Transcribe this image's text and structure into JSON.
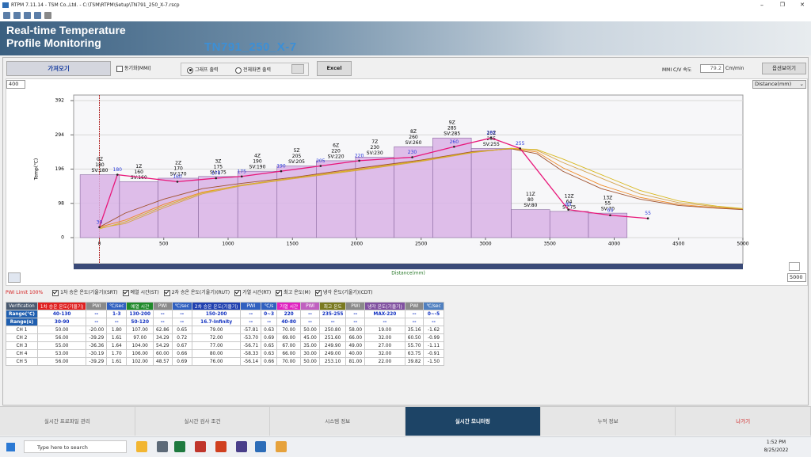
{
  "title_bar": {
    "title": "RTPM 7.11.14 - TSM Co.,Ltd. - C:\\TSM\\RTPM\\Setup\\TN791_250_X-7.rscp"
  },
  "header": {
    "title_line1": "Real-time Temperature",
    "title_line2": "Profile Monitoring",
    "model": "TN791_250_X-7"
  },
  "controls": {
    "import": "가져오기",
    "sync": "동기화[MMI]",
    "graph_output": "그래프 출력",
    "fullscreen_output": "전체화면 출력",
    "excel": "Excel",
    "speed_label": "MMI C/V 속도",
    "speed": "79.2",
    "speed_unit": "Cm/min",
    "options": "옵션보이기",
    "y_max_input": "400",
    "x_mode": "Distance(mm)",
    "x_max_input": "5000"
  },
  "chart_data": {
    "type": "line",
    "y_label": "Temp(℃)",
    "x_label": "Distance(mm)",
    "xlim": [
      -200,
      5000
    ],
    "xticks": [
      0,
      500,
      1000,
      1500,
      2000,
      2500,
      3000,
      3500,
      4000,
      4500,
      5000
    ],
    "ylim": [
      0,
      392
    ],
    "yticks": [
      0,
      98,
      196,
      294,
      392
    ],
    "grid": true,
    "zone_color": "#d9b3e6",
    "zones": [
      {
        "name": "0Z",
        "actual": 180,
        "setpoint": 180,
        "setpoint_label": "SV:180",
        "start": -150,
        "end": 156
      },
      {
        "name": "1Z",
        "actual": 160,
        "setpoint": 160,
        "setpoint_label": "SV:160",
        "start": 156,
        "end": 456
      },
      {
        "name": "2Z",
        "actual": 170,
        "setpoint": 170,
        "setpoint_label": "SV:170",
        "start": 456,
        "end": 770
      },
      {
        "name": "3Z",
        "actual": 175,
        "setpoint": 175,
        "setpoint_label": "SV:175",
        "start": 770,
        "end": 1075
      },
      {
        "name": "4Z",
        "actual": 190,
        "setpoint": 190,
        "setpoint_label": "SV:190",
        "start": 1075,
        "end": 1380
      },
      {
        "name": "5Z",
        "actual": 205,
        "setpoint": 205,
        "setpoint_label": "SV:205",
        "start": 1380,
        "end": 1685
      },
      {
        "name": "6Z",
        "actual": 220,
        "setpoint": 220,
        "setpoint_label": "SV:220",
        "start": 1685,
        "end": 1990
      },
      {
        "name": "7Z",
        "actual": 230,
        "setpoint": 230,
        "setpoint_label": "SV:230",
        "start": 1990,
        "end": 2290
      },
      {
        "name": "8Z",
        "actual": 260,
        "setpoint": 260,
        "setpoint_label": "SV:260",
        "start": 2290,
        "end": 2590
      },
      {
        "name": "9Z",
        "actual": 285,
        "setpoint": 285,
        "setpoint_label": "SV:285",
        "start": 2590,
        "end": 2890
      },
      {
        "name": "10Z",
        "actual": 255,
        "setpoint": 255,
        "setpoint_label": "SV:255",
        "start": 2890,
        "end": 3200
      },
      {
        "name": "11Z",
        "actual": 80,
        "setpoint": 80,
        "setpoint_label": "SV:80",
        "start": 3200,
        "end": 3500
      },
      {
        "name": "12Z",
        "actual": 64,
        "setpoint": 75,
        "setpoint_label": "SV:75",
        "start": 3500,
        "end": 3800
      },
      {
        "name": "13Z",
        "actual": 55,
        "setpoint": 70,
        "setpoint_label": "SV:70",
        "start": 3800,
        "end": 4100
      }
    ],
    "series": [
      {
        "color": "#f08a24",
        "x": [
          0,
          200,
          500,
          800,
          1100,
          1500,
          2000,
          2500,
          2900,
          3200,
          3400,
          3600,
          3900,
          4200,
          4500,
          4800,
          5000
        ],
        "values": [
          30,
          50,
          95,
          130,
          150,
          170,
          195,
          220,
          245,
          255,
          245,
          200,
          150,
          115,
          95,
          85,
          82
        ]
      },
      {
        "color": "#d4a24c",
        "x": [
          0,
          200,
          500,
          800,
          1100,
          1500,
          2000,
          2500,
          2900,
          3200,
          3400,
          3600,
          3900,
          4200,
          4500,
          4800,
          5000
        ],
        "values": [
          28,
          40,
          85,
          125,
          148,
          168,
          192,
          218,
          243,
          256,
          250,
          215,
          170,
          125,
          100,
          88,
          82
        ]
      },
      {
        "color": "#a0522d",
        "x": [
          0,
          200,
          500,
          800,
          1100,
          1500,
          2000,
          2500,
          2900,
          3200,
          3400,
          3600,
          3900,
          4200,
          4500,
          4800,
          5000
        ],
        "values": [
          30,
          70,
          110,
          140,
          155,
          172,
          198,
          222,
          246,
          254,
          240,
          190,
          140,
          110,
          92,
          84,
          80
        ]
      },
      {
        "color": "#d8b820",
        "x": [
          0,
          200,
          500,
          800,
          1100,
          1500,
          2000,
          2500,
          2900,
          3200,
          3400,
          3600,
          3900,
          4200,
          4500,
          4800,
          5000
        ],
        "values": [
          25,
          45,
          90,
          128,
          150,
          170,
          194,
          220,
          244,
          255,
          252,
          225,
          180,
          135,
          105,
          90,
          83
        ]
      },
      {
        "color": "#e8177a",
        "markers": true,
        "labels": true,
        "label_color": "#2a3adb",
        "x": [
          0,
          140,
          606,
          906,
          1106,
          1412,
          1719,
          2019,
          2431,
          2756,
          3044,
          3269,
          3644,
          3969,
          4262
        ],
        "values": [
          30,
          180,
          160,
          170,
          175,
          190,
          205,
          220,
          230,
          260,
          285,
          255,
          80,
          64,
          55
        ]
      }
    ]
  },
  "filters": {
    "pwi_limit": "PWI Limit 100%",
    "items": [
      "1차 승온 온도(기울기)(SRT)",
      "예열 시간(ST)",
      "2차 승온 온도(기울기)(RUT)",
      "가열 시간(RT)",
      "최고 온도(M)",
      "냉각 온도(기울기)(CDT)"
    ]
  },
  "table": {
    "header": [
      "Verification",
      "1차 승온 온도(기울기)",
      "PWI",
      "℃/sec",
      "예열 시간",
      "PWI",
      "℃/sec",
      "2차 승온 온도(기울기)",
      "PWI",
      "℃/s",
      "가열 시간",
      "PWI",
      "최고 온도",
      "PWI",
      "냉각 온도(기울기)",
      "PWI",
      "℃/sec"
    ],
    "rows": [
      [
        "Range(℃)",
        "40-130",
        "--",
        "1-3",
        "130-200",
        "--",
        "--",
        "150-200",
        "--",
        "0~3",
        "220",
        "--",
        "235-255",
        "--",
        "MAX-220",
        "--",
        "0~-5"
      ],
      [
        "Range(s)",
        "30-90",
        "--",
        "--",
        "50-120",
        "--",
        "--",
        "16.7-Infinity",
        "--",
        "--",
        "40-80",
        "--",
        "--",
        "--",
        "--",
        "--",
        "--"
      ],
      [
        "CH 1",
        "50.00",
        "-20.00",
        "1.80",
        "107.00",
        "62.86",
        "0.65",
        "79.00",
        "-57.81",
        "0.63",
        "70.00",
        "50.00",
        "250.80",
        "58.00",
        "19.00",
        "35.16",
        "-1.62"
      ],
      [
        "CH 2",
        "56.00",
        "-39.29",
        "1.61",
        "97.00",
        "34.29",
        "0.72",
        "72.00",
        "-53.70",
        "0.69",
        "69.00",
        "45.00",
        "251.60",
        "66.00",
        "32.00",
        "60.50",
        "-0.99"
      ],
      [
        "CH 3",
        "55.00",
        "-36.36",
        "1.64",
        "104.00",
        "54.29",
        "0.67",
        "77.00",
        "-56.71",
        "0.65",
        "67.00",
        "35.00",
        "249.90",
        "49.00",
        "27.00",
        "55.70",
        "-1.11"
      ],
      [
        "CH 4",
        "53.00",
        "-30.19",
        "1.70",
        "106.00",
        "60.00",
        "0.66",
        "80.00",
        "-58.33",
        "0.63",
        "66.00",
        "30.00",
        "249.00",
        "40.00",
        "32.00",
        "63.75",
        "-0.91"
      ],
      [
        "CH 5",
        "56.00",
        "-39.29",
        "1.61",
        "102.00",
        "48.57",
        "0.69",
        "76.00",
        "-56.14",
        "0.66",
        "70.00",
        "50.00",
        "253.10",
        "81.00",
        "22.00",
        "39.82",
        "-1.50"
      ]
    ]
  },
  "tabs": [
    "실시간 프로파일 관리",
    "실시간 검사 조건",
    "시스템 정보",
    "실시간 모니터링",
    "누적 정보",
    "나가기"
  ],
  "taskbar": {
    "search": "Type here to search",
    "time": "1:52 PM",
    "date": "8/25/2022"
  }
}
